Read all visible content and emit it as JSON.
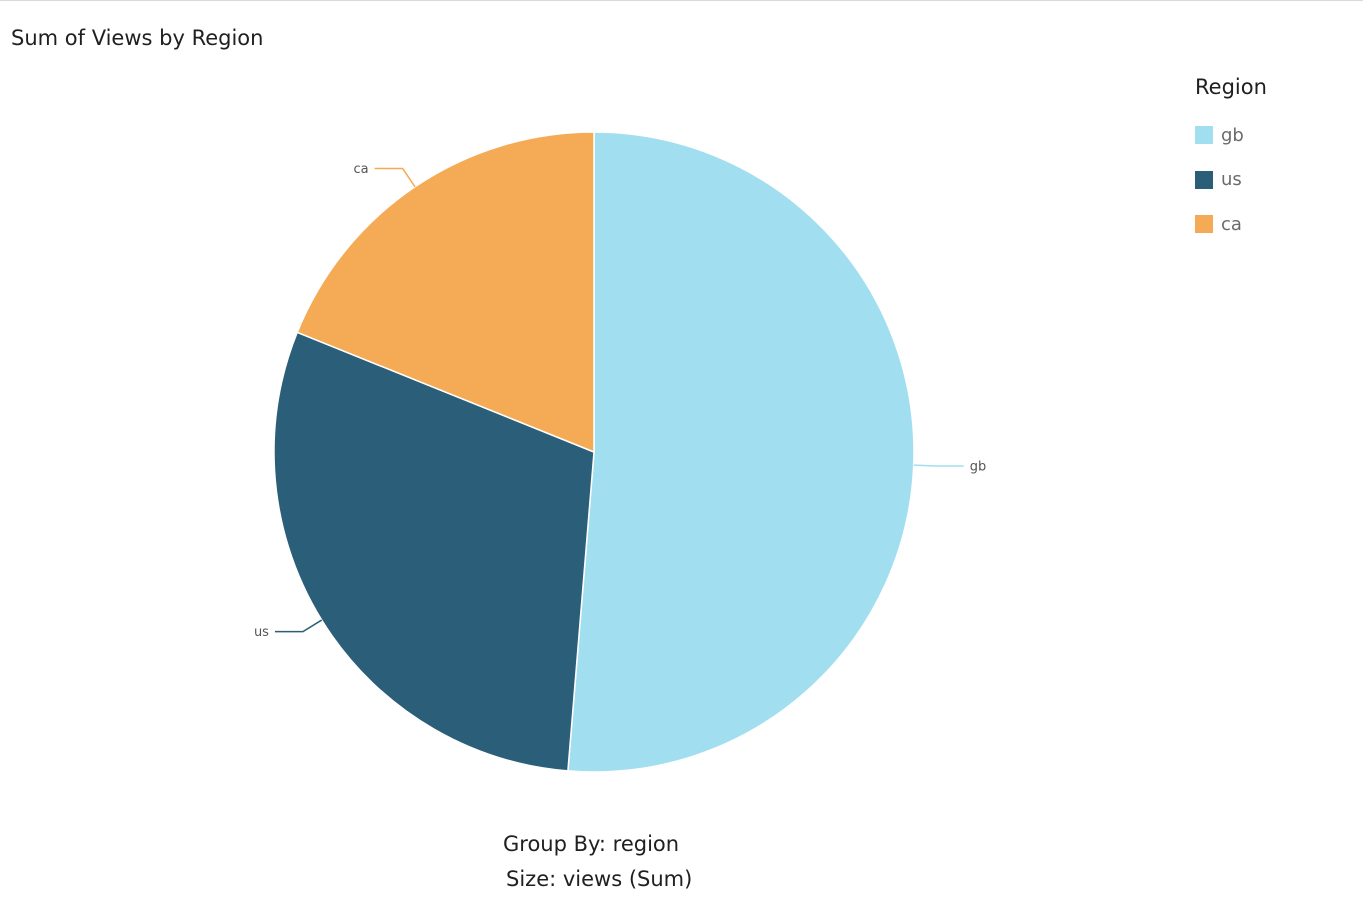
{
  "chart_data": {
    "type": "pie",
    "title": "Sum of Views by Region",
    "legend_title": "Region",
    "legend_position": "top-right",
    "slices": [
      {
        "label": "gb",
        "value": 51.3,
        "color": "#a1dff0"
      },
      {
        "label": "us",
        "value": 29.8,
        "color": "#2b5e78"
      },
      {
        "label": "ca",
        "value": 18.9,
        "color": "#f5aa55"
      }
    ],
    "footer": {
      "group_by": "Group By: region",
      "size": "Size: views (Sum)"
    }
  }
}
